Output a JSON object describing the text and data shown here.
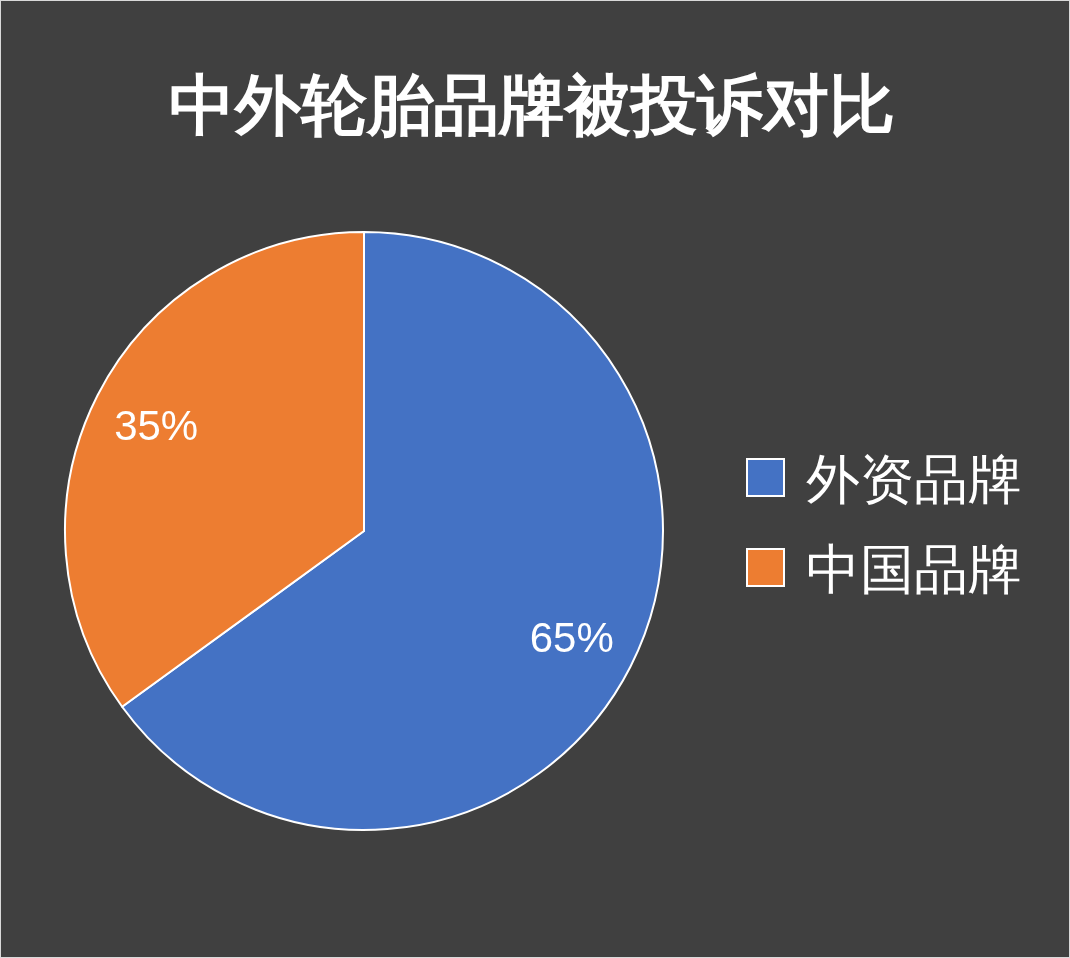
{
  "chart_data": {
    "type": "pie",
    "title": "中外轮胎品牌被投诉对比",
    "categories": [
      "外资品牌",
      "中国品牌"
    ],
    "values": [
      65,
      35
    ],
    "colors": [
      "#4472c4",
      "#ed7d31"
    ],
    "value_labels": [
      "65%",
      "35%"
    ],
    "legend": "right"
  }
}
